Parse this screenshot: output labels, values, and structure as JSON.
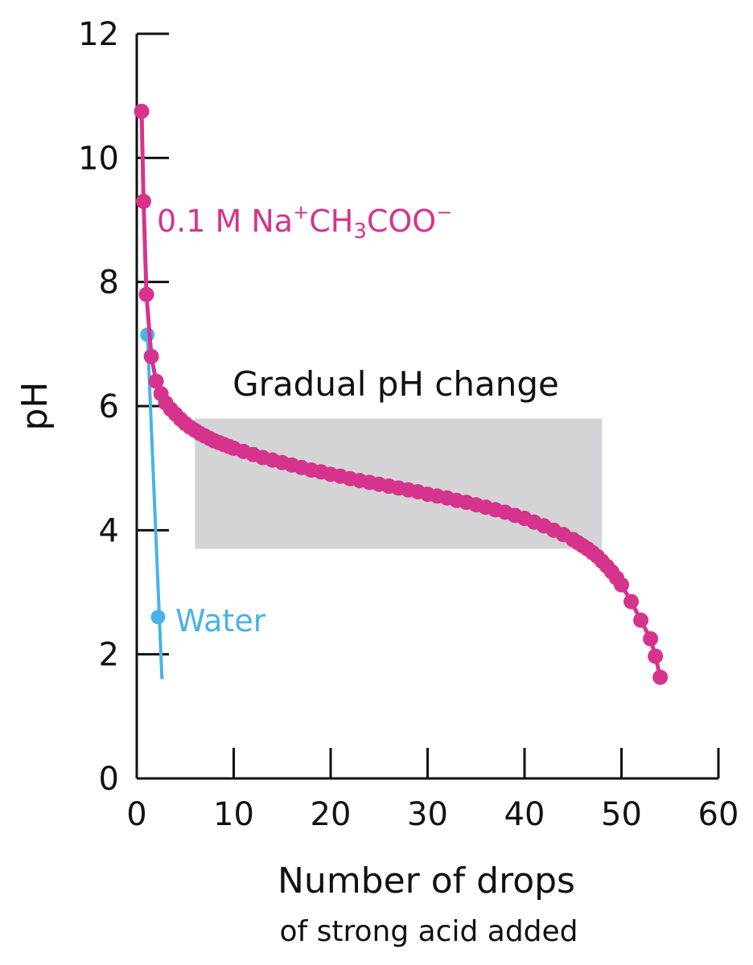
{
  "chart_data": {
    "type": "scatter",
    "xlabel": "Number of drops",
    "xlabel_sub": "of strong acid added",
    "ylabel": "pH",
    "xlim": [
      0,
      60
    ],
    "ylim": [
      0,
      12
    ],
    "x_ticks": [
      "0",
      "10",
      "20",
      "30",
      "40",
      "50",
      "60"
    ],
    "y_ticks": [
      "0",
      "2",
      "4",
      "6",
      "8",
      "10",
      "12"
    ],
    "region": {
      "label": "Gradual pH change",
      "x_range": [
        6,
        48
      ],
      "y_range": [
        3.7,
        5.8
      ],
      "color": "#d4d4d6"
    },
    "series": [
      {
        "name": "acetate",
        "label_pre": "0.1 M Na",
        "label_sup1": "+",
        "label_mid": "CH",
        "label_sub": "3",
        "label_post": "COO",
        "label_sup2": "−",
        "color": "#d6338c",
        "x": [
          0.5,
          0.7,
          1,
          1.5,
          2,
          2.5,
          3,
          3.5,
          4,
          4.5,
          5,
          5.5,
          6,
          6.5,
          7,
          7.5,
          8,
          8.5,
          9,
          9.5,
          10,
          11,
          12,
          13,
          14,
          15,
          16,
          17,
          18,
          19,
          20,
          21,
          22,
          23,
          24,
          25,
          26,
          27,
          28,
          29,
          30,
          31,
          32,
          33,
          34,
          35,
          36,
          37,
          38,
          39,
          40,
          41,
          42,
          43,
          44,
          45,
          45.5,
          46,
          46.5,
          47,
          47.5,
          48,
          48.5,
          49,
          49.5,
          50,
          51,
          52,
          53,
          53.5,
          54
        ],
        "y": [
          10.75,
          9.3,
          7.8,
          6.8,
          6.4,
          6.2,
          6.05,
          5.95,
          5.87,
          5.79,
          5.72,
          5.66,
          5.61,
          5.56,
          5.52,
          5.48,
          5.44,
          5.41,
          5.38,
          5.35,
          5.32,
          5.27,
          5.22,
          5.17,
          5.13,
          5.09,
          5.05,
          5.01,
          4.97,
          4.94,
          4.9,
          4.87,
          4.83,
          4.8,
          4.77,
          4.74,
          4.71,
          4.68,
          4.65,
          4.62,
          4.58,
          4.55,
          4.52,
          4.48,
          4.45,
          4.41,
          4.37,
          4.33,
          4.29,
          4.24,
          4.19,
          4.13,
          4.07,
          4.0,
          3.93,
          3.85,
          3.8,
          3.75,
          3.7,
          3.64,
          3.58,
          3.5,
          3.42,
          3.33,
          3.23,
          3.12,
          2.85,
          2.55,
          2.25,
          1.97,
          1.63
        ]
      },
      {
        "name": "water",
        "label": "Water",
        "color": "#49b2e6",
        "markers_x": [
          1.1,
          2.2
        ],
        "markers_y": [
          7.15,
          2.6
        ],
        "line_x": [
          1.1,
          2.6
        ],
        "line_y": [
          7.15,
          1.6
        ]
      }
    ]
  }
}
